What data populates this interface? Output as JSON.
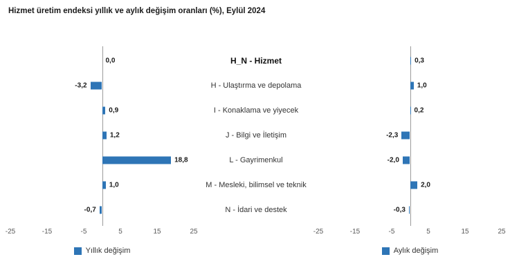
{
  "title": "Hizmet üretim endeksi yıllık ve aylık değişim oranları (%), Eylül 2024",
  "chart_data": {
    "type": "bar",
    "orientation": "horizontal",
    "layout": "butterfly-two-panels-with-center-category-labels",
    "categories": [
      "H_N - Hizmet",
      "H - Ulaştırma ve depolama",
      "I - Konaklama ve yiyecek",
      "J - Bilgi ve İletişim",
      "L - Gayrimenkul",
      "M - Mesleki, bilimsel ve teknik",
      "N - İdari ve destek"
    ],
    "series": [
      {
        "name": "Yıllık değişim",
        "panel": "left",
        "values": [
          0.0,
          -3.2,
          0.9,
          1.2,
          18.8,
          1.0,
          -0.7
        ],
        "labels": [
          "0,0",
          "-3,2",
          "0,9",
          "1,2",
          "18,8",
          "1,0",
          "-0,7"
        ]
      },
      {
        "name": "Aylık değişim",
        "panel": "right",
        "values": [
          0.3,
          1.0,
          0.2,
          -2.3,
          -2.0,
          2.0,
          -0.3
        ],
        "labels": [
          "0,3",
          "1,0",
          "0,2",
          "-2,3",
          "-2,0",
          "2,0",
          "-0,3"
        ]
      }
    ],
    "xlim": [
      -25,
      25
    ],
    "xticks": [
      -25,
      -15,
      -5,
      5,
      15,
      25
    ],
    "grid": false,
    "bar_color": "#2E75B6",
    "legend_position": "bottom"
  }
}
